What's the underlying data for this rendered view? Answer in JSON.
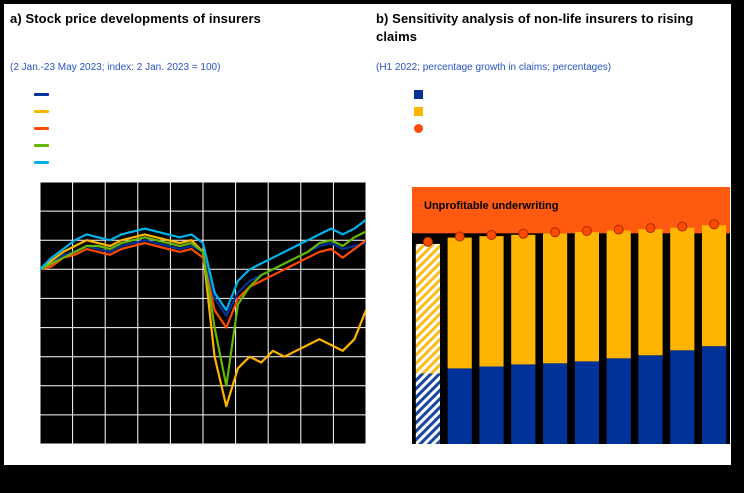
{
  "colors": {
    "page_bg": "#000000",
    "card_bg": "#ffffff",
    "title": "#000000",
    "subtitle": "#2653c9",
    "plot_bg": "#000000",
    "grid": "#ffffff",
    "band": "#ff5a0f",
    "dot": "#ff4b00",
    "dot_stroke": "#a82a00"
  },
  "panel_a": {
    "title": "a) Stock price developments of insurers",
    "subtitle": "(2 Jan.-23 May 2023; index: 2 Jan. 2023 = 100)",
    "legend": [
      {
        "name": "dark-blue-series",
        "swatch": "line",
        "color": "#003299"
      },
      {
        "name": "yellow-series",
        "swatch": "line",
        "color": "#FFB400"
      },
      {
        "name": "orange-red-series",
        "swatch": "line",
        "color": "#FF4B00"
      },
      {
        "name": "green-series",
        "swatch": "line",
        "color": "#65B800"
      },
      {
        "name": "light-blue-series",
        "swatch": "line",
        "color": "#00B1EA"
      }
    ]
  },
  "panel_b": {
    "title": "b) Sensitivity analysis of non-life insurers to rising claims",
    "subtitle": "(H1 2022; percentage growth in claims; percentages)",
    "annotation": "Unprofitable underwriting",
    "legend": [
      {
        "name": "dark-blue-stack",
        "swatch": "square",
        "color": "#003299"
      },
      {
        "name": "yellow-stack",
        "swatch": "square",
        "color": "#FFB400"
      },
      {
        "name": "red-dot-marker",
        "swatch": "circle",
        "color": "#ff4b00"
      }
    ]
  },
  "chart_data": [
    {
      "type": "line",
      "title": "a) Stock price developments of insurers",
      "note": "(2 Jan.-23 May 2023; index: 2 Jan. 2023 = 100)",
      "ylim": [
        70,
        115
      ],
      "y_gridline_step": 5,
      "x_gridlines": 10,
      "grid": true,
      "plot_background": "#000000",
      "series": [
        {
          "name": "dark-blue",
          "color": "#003299",
          "values": [
            100,
            101,
            102.5,
            103,
            104,
            103.5,
            103,
            104,
            104.5,
            105,
            104.5,
            104,
            103.5,
            104,
            103,
            95,
            92,
            96,
            98,
            99,
            100,
            101,
            102,
            103,
            104,
            104.5,
            103.5,
            104,
            104.5
          ]
        },
        {
          "name": "yellow",
          "color": "#FFB400",
          "values": [
            100,
            101.5,
            103,
            104,
            105,
            104.5,
            104,
            105,
            105.5,
            106,
            105.5,
            105,
            104.5,
            105,
            103,
            85,
            76.5,
            83,
            85,
            84,
            86,
            85,
            86,
            87,
            88,
            87,
            86,
            88,
            93
          ]
        },
        {
          "name": "orange-red",
          "color": "#FF4B00",
          "values": [
            100,
            100.5,
            102,
            102.5,
            103.5,
            103,
            102.5,
            103.5,
            104,
            104.5,
            104,
            103.5,
            103,
            103.5,
            102,
            93,
            90,
            95,
            97,
            98,
            99,
            100,
            101,
            102,
            103,
            103.5,
            102,
            103.5,
            105
          ]
        },
        {
          "name": "green",
          "color": "#65B800",
          "values": [
            100,
            101,
            102,
            103,
            104,
            104,
            103.5,
            104.5,
            105,
            105.5,
            105,
            104.5,
            104,
            104.5,
            103,
            90,
            80,
            94,
            97,
            99,
            100,
            101,
            102,
            103,
            104.5,
            105,
            104,
            105.5,
            106.5
          ]
        },
        {
          "name": "light-blue",
          "color": "#00B1EA",
          "values": [
            100,
            102,
            103.5,
            105,
            106,
            105.5,
            105,
            106,
            106.5,
            107,
            106.5,
            106,
            105.5,
            106,
            104.5,
            96,
            93,
            98,
            100,
            101,
            102,
            103,
            104,
            105,
            106,
            107,
            106,
            107,
            108.5
          ]
        }
      ]
    },
    {
      "type": "bar",
      "stacked": true,
      "title": "b) Sensitivity analysis of non-life insurers to rising claims",
      "note": "(H1 2022; percentage growth in claims; percentages)",
      "ylim": [
        0,
        122
      ],
      "threshold": 100,
      "threshold_region_label": "Unprofitable underwriting",
      "bar_count": 10,
      "baseline_bar_hatched": true,
      "series": [
        {
          "name": "dark-blue-stack",
          "color": "#003299",
          "values": [
            33.5,
            35.9,
            36.8,
            37.8,
            38.3,
            39.2,
            40.7,
            42.1,
            44.5,
            46.4
          ]
        },
        {
          "name": "yellow-stack",
          "color": "#FFB400",
          "values": [
            61.5,
            62.1,
            61.9,
            61.5,
            61.7,
            61.4,
            60.6,
            59.9,
            58.2,
            57.4
          ]
        }
      ],
      "markers": {
        "name": "red-dot",
        "color": "#ff4b00",
        "values": [
          96,
          98.5,
          99.2,
          99.8,
          100.5,
          101.1,
          101.8,
          102.5,
          103.2,
          104.3
        ]
      }
    }
  ]
}
